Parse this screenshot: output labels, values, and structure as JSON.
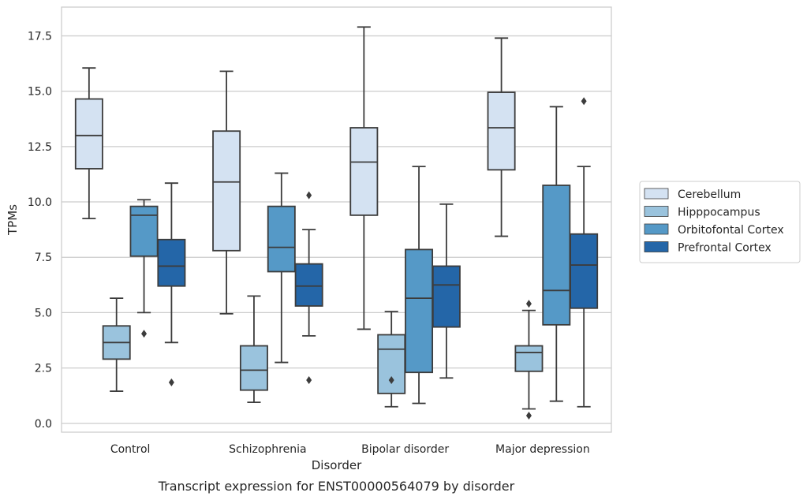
{
  "chart_data": {
    "type": "boxplot",
    "caption": "Transcript expression for ENST00000564079 by disorder",
    "xlabel": "Disorder",
    "ylabel": "TPMs",
    "ylim": [
      -0.4,
      18.8
    ],
    "yticks": [
      0.0,
      2.5,
      5.0,
      7.5,
      10.0,
      12.5,
      15.0,
      17.5
    ],
    "ytick_labels": [
      "0.0",
      "2.5",
      "5.0",
      "7.5",
      "10.0",
      "12.5",
      "15.0",
      "17.5"
    ],
    "categories": [
      "Control",
      "Schizophrenia",
      "Bipolar disorder",
      "Major depression"
    ],
    "grid": "horizontal",
    "legend_position": "right",
    "series": [
      {
        "name": "Cerebellum",
        "color": "#d4e2f2",
        "boxes": [
          {
            "whislo": 9.25,
            "q1": 11.5,
            "med": 13.0,
            "q3": 14.65,
            "whishi": 16.05,
            "fliers": []
          },
          {
            "whislo": 4.95,
            "q1": 7.8,
            "med": 10.9,
            "q3": 13.2,
            "whishi": 15.9,
            "fliers": []
          },
          {
            "whislo": 4.25,
            "q1": 9.4,
            "med": 11.8,
            "q3": 13.35,
            "whishi": 17.9,
            "fliers": []
          },
          {
            "whislo": 8.45,
            "q1": 11.45,
            "med": 13.35,
            "q3": 14.95,
            "whishi": 17.4,
            "fliers": []
          }
        ]
      },
      {
        "name": "Hipppocampus",
        "color": "#9ac3dd",
        "boxes": [
          {
            "whislo": 1.45,
            "q1": 2.9,
            "med": 3.65,
            "q3": 4.4,
            "whishi": 5.65,
            "fliers": []
          },
          {
            "whislo": 0.95,
            "q1": 1.5,
            "med": 2.4,
            "q3": 3.5,
            "whishi": 5.75,
            "fliers": []
          },
          {
            "whislo": 0.75,
            "q1": 1.35,
            "med": 3.35,
            "q3": 4.0,
            "whishi": 5.05,
            "fliers": [
              1.95
            ]
          },
          {
            "whislo": 0.65,
            "q1": 2.35,
            "med": 3.2,
            "q3": 3.5,
            "whishi": 5.1,
            "fliers": [
              0.35,
              5.4
            ]
          }
        ]
      },
      {
        "name": "Orbitofontal Cortex",
        "color": "#5599c7",
        "boxes": [
          {
            "whislo": 5.0,
            "q1": 7.55,
            "med": 9.4,
            "q3": 9.8,
            "whishi": 10.1,
            "fliers": [
              4.05
            ]
          },
          {
            "whislo": 2.75,
            "q1": 6.85,
            "med": 7.95,
            "q3": 9.8,
            "whishi": 11.3,
            "fliers": []
          },
          {
            "whislo": 0.9,
            "q1": 2.3,
            "med": 5.65,
            "q3": 7.85,
            "whishi": 11.6,
            "fliers": []
          },
          {
            "whislo": 1.0,
            "q1": 4.45,
            "med": 6.0,
            "q3": 10.75,
            "whishi": 14.3,
            "fliers": []
          }
        ]
      },
      {
        "name": "Prefrontal Cortex",
        "color": "#2466a8",
        "boxes": [
          {
            "whislo": 3.65,
            "q1": 6.2,
            "med": 7.1,
            "q3": 8.3,
            "whishi": 10.85,
            "fliers": [
              1.85
            ]
          },
          {
            "whislo": 3.95,
            "q1": 5.3,
            "med": 6.2,
            "q3": 7.2,
            "whishi": 8.75,
            "fliers": [
              1.95,
              10.3
            ]
          },
          {
            "whislo": 2.05,
            "q1": 4.35,
            "med": 6.25,
            "q3": 7.1,
            "whishi": 9.9,
            "fliers": []
          },
          {
            "whislo": 0.75,
            "q1": 5.2,
            "med": 7.15,
            "q3": 8.55,
            "whishi": 11.6,
            "fliers": [
              14.55
            ]
          }
        ]
      }
    ]
  }
}
